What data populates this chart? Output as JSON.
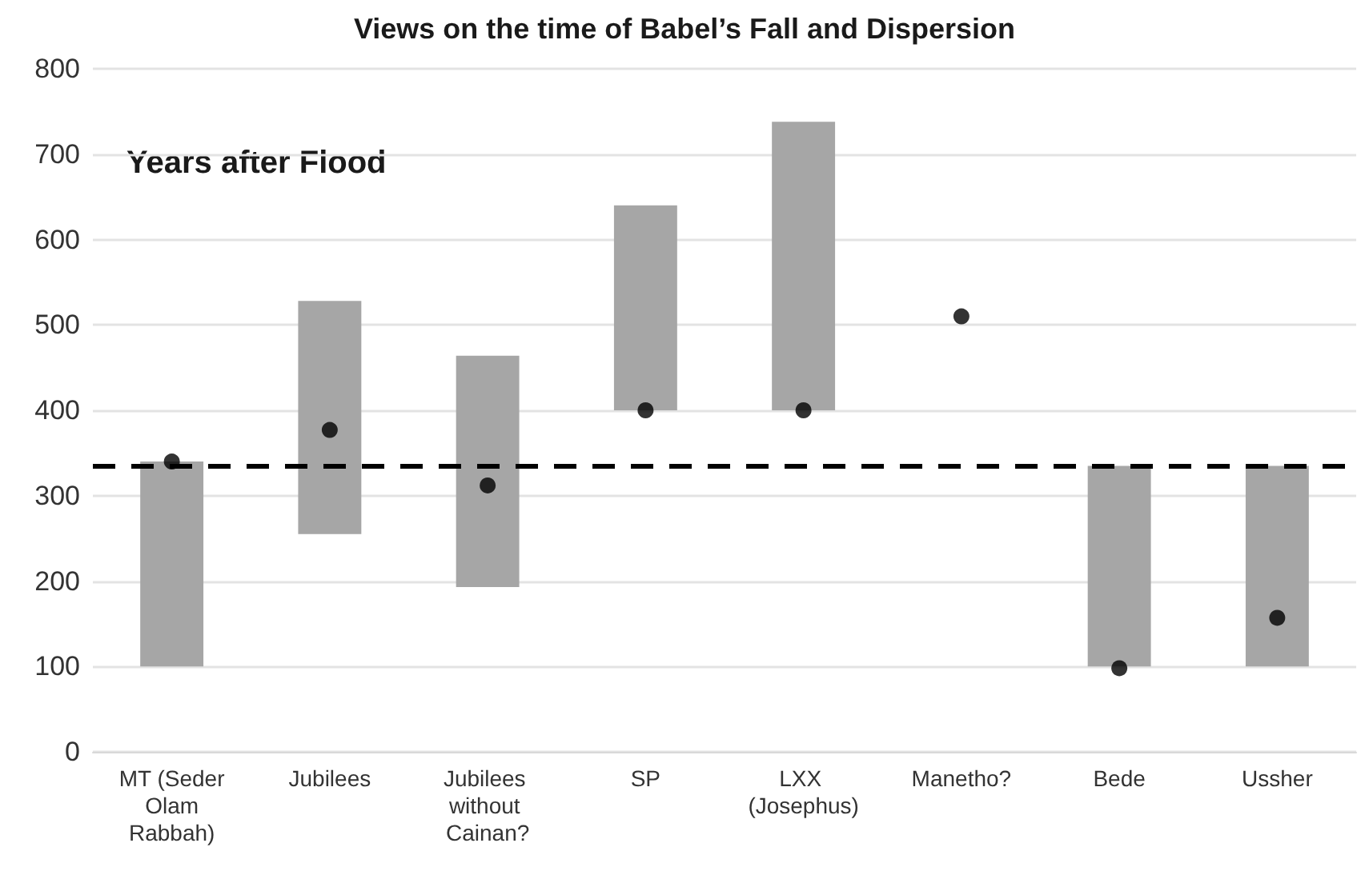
{
  "chart_data": {
    "type": "bar",
    "title": "Views on the time of Babel’s Fall and Dispersion",
    "annotations": [
      "Years after Flood"
    ],
    "categories": [
      "MT (Seder Olam Rabbah)",
      "Jubilees",
      "Jubilees without Cainan?",
      "SP",
      "LXX (Josephus)",
      "Manetho?",
      "Bede",
      "Ussher"
    ],
    "series": [
      {
        "color": "#a6a6a6",
        "base": [
          100,
          255,
          193,
          400,
          400,
          null,
          100,
          100
        ],
        "values": [
          240,
          273,
          271,
          240,
          338,
          null,
          235,
          235
        ]
      },
      {
        "type": "scatter",
        "color": "#000000",
        "marker": "circle",
        "x": [
          "MT (Seder Olam Rabbah)",
          "Jubilees",
          "Jubilees without Cainan?",
          "SP",
          "LXX (Josephus)",
          "Manetho?",
          "Bede",
          "Ussher"
        ],
        "values": [
          340,
          377,
          312,
          400,
          400,
          510,
          98,
          157
        ]
      }
    ],
    "ref_lines": [
      {
        "axis": "y",
        "value": 335,
        "color": "#000000",
        "line_style": "dashed"
      }
    ],
    "ylim": [
      0,
      800
    ],
    "yticks": [
      0,
      100,
      200,
      300,
      400,
      500,
      600,
      700,
      800
    ],
    "grid": "y"
  }
}
